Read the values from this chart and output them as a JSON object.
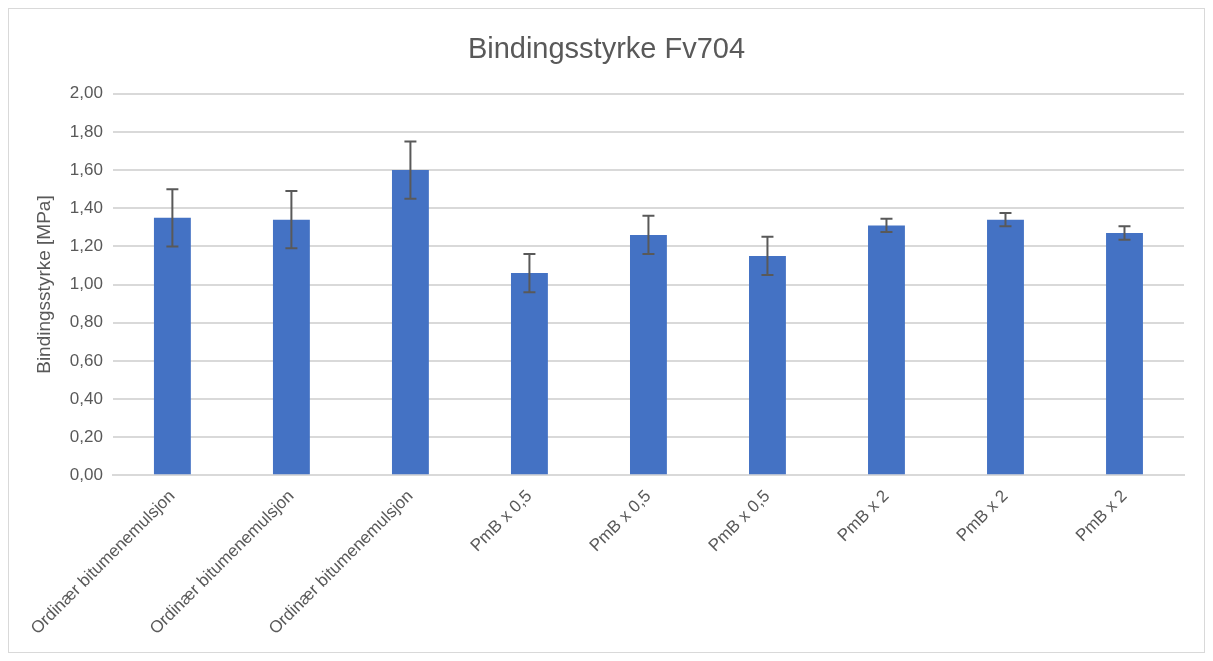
{
  "chart_data": {
    "type": "bar",
    "title": "Bindingsstyrke Fv704",
    "ylabel": "Bindingsstyrke [MPa]",
    "categories": [
      "Ordinær bitumenemulsjon",
      "Ordinær bitumenemulsjon",
      "Ordinær bitumenemulsjon",
      "PmB x 0,5",
      "PmB x 0,5",
      "PmB x 0,5",
      "PmB x 2",
      "PmB x 2",
      "PmB x 2"
    ],
    "values": [
      1.35,
      1.34,
      1.6,
      1.06,
      1.26,
      1.15,
      1.31,
      1.34,
      1.27
    ],
    "errors": [
      0.15,
      0.15,
      0.15,
      0.1,
      0.1,
      0.1,
      0.035,
      0.035,
      0.035
    ],
    "color": "#4472c4",
    "ylim": [
      0,
      2
    ],
    "yticks": [
      {
        "value": 0,
        "label": "0,00"
      },
      {
        "value": 0.2,
        "label": "0,20"
      },
      {
        "value": 0.4,
        "label": "0,40"
      },
      {
        "value": 0.6,
        "label": "0,60"
      },
      {
        "value": 0.8,
        "label": "0,80"
      },
      {
        "value": 1,
        "label": "1,00"
      },
      {
        "value": 1.2,
        "label": "1,20"
      },
      {
        "value": 1.4,
        "label": "1,40"
      },
      {
        "value": 1.6,
        "label": "1,60"
      },
      {
        "value": 1.8,
        "label": "1,80"
      },
      {
        "value": 2,
        "label": "2,00"
      }
    ],
    "grid": "y",
    "legend": false
  }
}
